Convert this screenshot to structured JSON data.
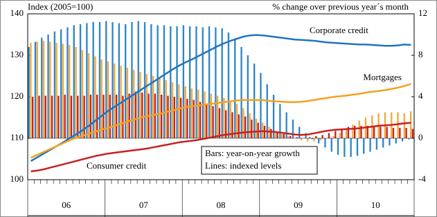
{
  "chart_data": {
    "type": "combo",
    "y_label": "Index (2005=100)",
    "y2_label": "% change over previous year´s month",
    "year_labels": [
      "06",
      "07",
      "08",
      "09",
      "10"
    ],
    "ylim": [
      100,
      140
    ],
    "yticks": [
      100,
      110,
      120,
      130,
      140
    ],
    "y2lim": [
      -4,
      12
    ],
    "y2ticks": [
      -4,
      0,
      4,
      8,
      12
    ],
    "series": [
      {
        "name": "Corporate credit",
        "type": "bar",
        "axis": "y2",
        "color": "#2f86c8",
        "values": [
          8.8,
          9.3,
          9.7,
          10.0,
          10.3,
          10.5,
          10.7,
          10.9,
          11.0,
          11.1,
          11.2,
          11.2,
          11.3,
          11.2,
          11.1,
          11.0,
          11.2,
          11.3,
          11.2,
          11.0,
          10.9,
          10.9,
          10.8,
          10.8,
          10.9,
          10.8,
          10.8,
          10.7,
          10.8,
          10.7,
          10.6,
          10.2,
          9.5,
          8.8,
          8.0,
          7.2,
          6.3,
          5.2,
          4.2,
          3.3,
          2.5,
          1.8,
          1.1,
          0.5,
          -0.1,
          -0.5,
          -0.9,
          -1.3,
          -1.6,
          -1.8,
          -1.8,
          -1.7,
          -1.5,
          -1.3,
          -1.1,
          -0.9,
          -0.7,
          -0.5,
          -0.3,
          -0.1
        ]
      },
      {
        "name": "Mortgages",
        "type": "bar",
        "axis": "y2",
        "color": "#f5a83a",
        "values": [
          9.2,
          9.3,
          9.4,
          9.3,
          9.2,
          9.1,
          9.0,
          8.8,
          8.5,
          8.2,
          7.9,
          7.6,
          7.4,
          7.2,
          7.0,
          6.8,
          6.6,
          6.4,
          6.2,
          6.0,
          5.8,
          5.6,
          5.4,
          5.2,
          5.0,
          4.8,
          4.7,
          4.5,
          4.3,
          4.1,
          3.9,
          3.6,
          3.3,
          2.9,
          2.4,
          1.9,
          1.5,
          1.1,
          0.7,
          0.4,
          0.2,
          0.0,
          -0.2,
          -0.3,
          -0.3,
          -0.2,
          0.0,
          0.2,
          0.5,
          0.9,
          1.3,
          1.7,
          2.0,
          2.2,
          2.4,
          2.5,
          2.5,
          2.5,
          2.4,
          2.6
        ]
      },
      {
        "name": "Consumer credit",
        "type": "bar",
        "axis": "y2",
        "color": "#c8201e",
        "values": [
          4.0,
          4.1,
          4.1,
          4.1,
          4.1,
          4.2,
          4.1,
          4.1,
          4.1,
          4.2,
          4.2,
          4.2,
          4.2,
          4.2,
          4.1,
          4.3,
          4.5,
          4.4,
          4.3,
          4.3,
          4.2,
          4.1,
          4.0,
          3.9,
          3.8,
          3.7,
          3.5,
          3.3,
          3.1,
          2.9,
          2.7,
          2.5,
          2.3,
          2.1,
          1.8,
          1.5,
          1.2,
          0.9,
          0.6,
          0.4,
          0.2,
          0.1,
          0.0,
          0.1,
          0.2,
          0.3,
          0.5,
          0.7,
          0.9,
          1.1,
          1.2,
          1.2,
          1.2,
          1.2,
          1.1,
          1.1,
          1.0,
          1.0,
          1.0,
          0.9
        ]
      },
      {
        "name": "Corporate credit",
        "type": "line",
        "color": "#1f74c0",
        "values": [
          104.5,
          105.4,
          106.3,
          107.2,
          108.1,
          109.0,
          110.0,
          110.9,
          111.9,
          113.0,
          114.2,
          115.4,
          116.6,
          117.6,
          118.6,
          119.6,
          120.6,
          121.6,
          122.6,
          123.6,
          124.6,
          125.6,
          126.6,
          127.5,
          128.3,
          129.0,
          129.8,
          130.6,
          131.4,
          132.2,
          132.9,
          133.5,
          134.0,
          134.5,
          134.8,
          134.9,
          134.8,
          134.6,
          134.4,
          134.2,
          134.0,
          133.8,
          133.7,
          133.6,
          133.5,
          133.3,
          133.1,
          133.0,
          132.9,
          132.8,
          132.7,
          132.6,
          132.6,
          132.5,
          132.4,
          132.3,
          132.3,
          132.4,
          132.6,
          132.5
        ]
      },
      {
        "name": "Mortgages",
        "type": "line",
        "color": "#f5a020",
        "values": [
          105.3,
          106.0,
          106.7,
          107.4,
          108.1,
          108.8,
          109.5,
          110.1,
          110.6,
          111.1,
          111.6,
          112.1,
          112.5,
          113.0,
          113.5,
          114.0,
          114.5,
          115.0,
          115.3,
          115.6,
          115.9,
          116.3,
          116.7,
          117.1,
          117.5,
          117.7,
          117.9,
          118.1,
          118.3,
          118.5,
          118.7,
          118.9,
          119.1,
          119.2,
          119.2,
          119.2,
          119.2,
          119.0,
          118.9,
          118.8,
          118.7,
          118.7,
          118.8,
          119.0,
          119.2,
          119.5,
          119.7,
          120.0,
          120.1,
          120.3,
          120.5,
          120.7,
          121.0,
          121.2,
          121.4,
          121.6,
          121.9,
          122.2,
          122.6,
          123.1
        ]
      },
      {
        "name": "Consumer credit",
        "type": "line",
        "color": "#c8201e",
        "values": [
          102.0,
          102.2,
          102.5,
          102.9,
          103.3,
          103.7,
          104.1,
          104.5,
          104.9,
          105.3,
          105.7,
          106.0,
          106.3,
          106.5,
          106.7,
          106.9,
          107.1,
          107.3,
          107.5,
          107.8,
          108.1,
          108.4,
          108.7,
          109.0,
          109.2,
          109.4,
          109.6,
          109.9,
          110.2,
          110.5,
          110.8,
          111.0,
          111.2,
          111.4,
          111.5,
          111.6,
          111.7,
          111.6,
          111.5,
          111.3,
          111.1,
          110.9,
          110.8,
          110.9,
          111.2,
          111.5,
          111.8,
          112.0,
          112.1,
          112.2,
          112.3,
          112.4,
          112.6,
          112.8,
          113.0,
          113.1,
          113.2,
          113.4,
          113.6,
          113.7
        ]
      }
    ],
    "note_lines": [
      "Bars: year-on-year growth",
      "Lines: indexed levels"
    ]
  }
}
